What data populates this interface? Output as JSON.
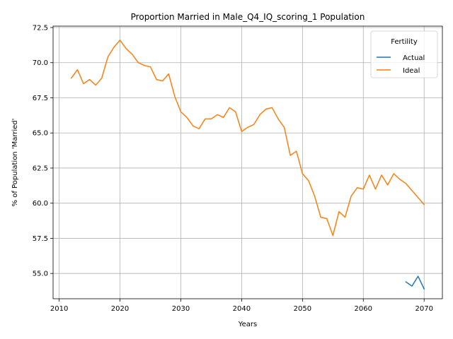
{
  "chart_data": {
    "type": "line",
    "title": "Proportion Married in Male_Q4_IQ_scoring_1 Population",
    "xlabel": "Years",
    "ylabel": "% of Population 'Married'",
    "xlim": [
      2009,
      2073
    ],
    "ylim": [
      53.2,
      72.6
    ],
    "x_ticks": [
      2010,
      2020,
      2030,
      2040,
      2050,
      2060,
      2070
    ],
    "y_ticks": [
      55.0,
      57.5,
      60.0,
      62.5,
      65.0,
      67.5,
      70.0,
      72.5
    ],
    "y_tick_labels": [
      "55.0",
      "57.5",
      "60.0",
      "62.5",
      "65.0",
      "67.5",
      "70.0",
      "72.5"
    ],
    "grid": true,
    "legend": {
      "title": "Fertility",
      "placement": "top-right"
    },
    "colors": {
      "Actual": "#1f77b4",
      "Ideal": "#ff7f0e"
    },
    "series": [
      {
        "name": "Actual",
        "x": [
          2067,
          2068,
          2069,
          2070
        ],
        "y": [
          54.4,
          54.1,
          54.8,
          53.9
        ]
      },
      {
        "name": "Ideal",
        "x": [
          2012,
          2013,
          2014,
          2015,
          2016,
          2017,
          2018,
          2019,
          2020,
          2021,
          2022,
          2023,
          2024,
          2025,
          2026,
          2027,
          2028,
          2029,
          2030,
          2031,
          2032,
          2033,
          2034,
          2035,
          2036,
          2037,
          2038,
          2039,
          2040,
          2041,
          2042,
          2043,
          2044,
          2045,
          2046,
          2047,
          2048,
          2049,
          2050,
          2051,
          2052,
          2053,
          2054,
          2055,
          2056,
          2057,
          2058,
          2059,
          2060,
          2061,
          2062,
          2063,
          2064,
          2065,
          2066,
          2067,
          2068,
          2069,
          2070
        ],
        "y": [
          68.9,
          69.5,
          68.5,
          68.8,
          68.4,
          68.9,
          70.4,
          71.1,
          71.6,
          71.0,
          70.6,
          70.0,
          69.8,
          69.7,
          68.8,
          68.7,
          69.2,
          67.6,
          66.5,
          66.1,
          65.5,
          65.3,
          66.0,
          66.0,
          66.3,
          66.1,
          66.8,
          66.5,
          65.1,
          65.4,
          65.6,
          66.3,
          66.7,
          66.8,
          66.0,
          65.4,
          63.4,
          63.7,
          62.1,
          61.6,
          60.5,
          59.0,
          58.9,
          57.7,
          59.4,
          59.0,
          60.5,
          61.1,
          61.0,
          62.0,
          61.0,
          62.0,
          61.3,
          62.1,
          61.7,
          61.4,
          60.9,
          60.4,
          59.9
        ]
      }
    ]
  }
}
